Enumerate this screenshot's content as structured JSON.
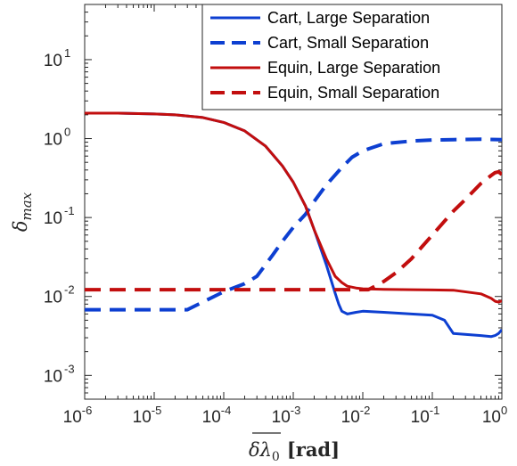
{
  "chart_data": {
    "type": "line",
    "xscale": "log",
    "yscale": "log",
    "xlim": [
      1e-06,
      1
    ],
    "ylim": [
      0.0005,
      50
    ],
    "grid": false,
    "legend_position": "top-right",
    "xlabel": "δλ₀ [rad]",
    "xlabel_parts": {
      "symbol": "δλ",
      "subscript": "0",
      "unit": "[rad]"
    },
    "ylabel": "δmax",
    "ylabel_parts": {
      "symbol": "δ",
      "subscript": "max"
    },
    "x_ticks": [
      {
        "base": "10",
        "exp": "-6",
        "value": 1e-06
      },
      {
        "base": "10",
        "exp": "-5",
        "value": 1e-05
      },
      {
        "base": "10",
        "exp": "-4",
        "value": 0.0001
      },
      {
        "base": "10",
        "exp": "-3",
        "value": 0.001
      },
      {
        "base": "10",
        "exp": "-2",
        "value": 0.01
      },
      {
        "base": "10",
        "exp": "-1",
        "value": 0.1
      },
      {
        "base": "10",
        "exp": "0",
        "value": 1
      }
    ],
    "y_ticks": [
      {
        "base": "10",
        "exp": "-3",
        "value": 0.001
      },
      {
        "base": "10",
        "exp": "-2",
        "value": 0.01
      },
      {
        "base": "10",
        "exp": "-1",
        "value": 0.1
      },
      {
        "base": "10",
        "exp": "0",
        "value": 1
      },
      {
        "base": "10",
        "exp": "1",
        "value": 10
      }
    ],
    "series": [
      {
        "name": "Cart, Large Separation",
        "color": "#0d3fd1",
        "style": "solid",
        "x": [
          1e-06,
          3e-06,
          1e-05,
          2e-05,
          5e-05,
          0.0001,
          0.0002,
          0.0004,
          0.0007,
          0.001,
          0.0015,
          0.002,
          0.003,
          0.004,
          0.0045,
          0.005,
          0.006,
          0.008,
          0.01,
          0.02,
          0.05,
          0.1,
          0.15,
          0.2,
          0.5,
          0.7,
          0.8,
          0.9,
          1.0
        ],
        "y": [
          2.1,
          2.1,
          2.05,
          2.0,
          1.85,
          1.6,
          1.25,
          0.8,
          0.45,
          0.28,
          0.14,
          0.07,
          0.025,
          0.011,
          0.008,
          0.0065,
          0.006,
          0.0063,
          0.0065,
          0.0063,
          0.006,
          0.0058,
          0.005,
          0.0034,
          0.0032,
          0.0031,
          0.0032,
          0.0034,
          0.0038
        ]
      },
      {
        "name": "Cart, Small Separation",
        "color": "#0d3fd1",
        "style": "dashed",
        "x": [
          1e-06,
          3e-06,
          1e-05,
          2e-05,
          3e-05,
          5e-05,
          0.0001,
          0.0002,
          0.0003,
          0.0005,
          0.0007,
          0.001,
          0.0015,
          0.002,
          0.003,
          0.005,
          0.007,
          0.01,
          0.02,
          0.05,
          0.1,
          0.2,
          0.5,
          1.0
        ],
        "y": [
          0.0068,
          0.0068,
          0.0068,
          0.0068,
          0.0068,
          0.0085,
          0.0115,
          0.0145,
          0.018,
          0.033,
          0.05,
          0.075,
          0.11,
          0.16,
          0.26,
          0.43,
          0.58,
          0.7,
          0.86,
          0.93,
          0.96,
          0.97,
          0.98,
          0.97
        ]
      },
      {
        "name": "Equin, Large Separation",
        "color": "#c20e0e",
        "style": "solid",
        "x": [
          1e-06,
          3e-06,
          1e-05,
          2e-05,
          5e-05,
          0.0001,
          0.0002,
          0.0004,
          0.0007,
          0.001,
          0.0015,
          0.002,
          0.003,
          0.004,
          0.005,
          0.006,
          0.008,
          0.01,
          0.02,
          0.05,
          0.1,
          0.2,
          0.5,
          0.7,
          0.8,
          0.9,
          1.0
        ],
        "y": [
          2.1,
          2.1,
          2.05,
          2.0,
          1.85,
          1.6,
          1.25,
          0.8,
          0.45,
          0.28,
          0.14,
          0.07,
          0.03,
          0.018,
          0.015,
          0.0135,
          0.0128,
          0.0125,
          0.0123,
          0.0122,
          0.0121,
          0.012,
          0.0108,
          0.0095,
          0.0087,
          0.0085,
          0.0088
        ]
      },
      {
        "name": "Equin, Small Separation",
        "color": "#c20e0e",
        "style": "dashed",
        "x": [
          1e-06,
          1e-05,
          0.0001,
          0.001,
          0.005,
          0.008,
          0.01,
          0.012,
          0.015,
          0.02,
          0.03,
          0.05,
          0.07,
          0.1,
          0.15,
          0.2,
          0.3,
          0.5,
          0.7,
          0.8,
          0.9,
          1.0
        ],
        "y": [
          0.0122,
          0.0122,
          0.0122,
          0.0122,
          0.0122,
          0.0122,
          0.0122,
          0.0122,
          0.0135,
          0.0155,
          0.02,
          0.03,
          0.042,
          0.06,
          0.09,
          0.12,
          0.17,
          0.27,
          0.34,
          0.37,
          0.38,
          0.35
        ]
      }
    ]
  }
}
